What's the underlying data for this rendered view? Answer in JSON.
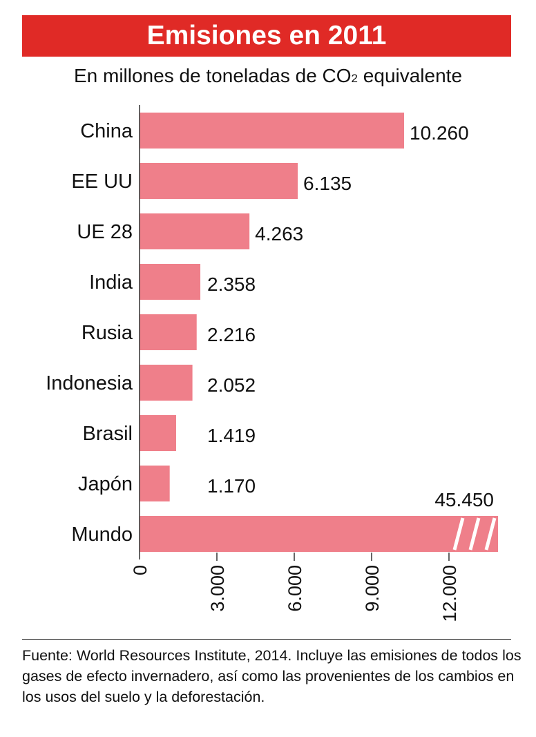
{
  "chart_data": {
    "type": "bar",
    "orientation": "horizontal",
    "title": "Emisiones en 2011",
    "subtitle_main": "En millones de toneladas de CO",
    "subtitle_sub": "2",
    "subtitle_end": " equivalente",
    "categories": [
      "China",
      "EE UU",
      "UE 28",
      "India",
      "Rusia",
      "Indonesia",
      "Brasil",
      "Japón",
      "Mundo"
    ],
    "values": [
      10260,
      6135,
      4263,
      2358,
      2216,
      2052,
      1419,
      1170,
      45450
    ],
    "value_labels": [
      "10.260",
      "6.135",
      "4.263",
      "2.358",
      "2.216",
      "2.052",
      "1.419",
      "1.170",
      "45.450"
    ],
    "axis": {
      "ticks": [
        0,
        3000,
        6000,
        9000,
        12000
      ],
      "tick_labels": [
        "0",
        "3.000",
        "6.000",
        "9.000",
        "12.000"
      ],
      "range": [
        0,
        14000
      ],
      "tick_label_rotation": "vertical"
    },
    "truncated_categories": [
      "Mundo"
    ],
    "grid": false,
    "colors": {
      "bar": "#ef7f8a",
      "title_bg": "#e02a26",
      "title_text": "#ffffff"
    }
  },
  "footer": {
    "source": "Fuente: World Resources Institute, 2014. Incluye las emisiones de todos los gases de efecto invernadero, así como las provenientes de los cambios en los usos del suelo y la deforestación."
  }
}
